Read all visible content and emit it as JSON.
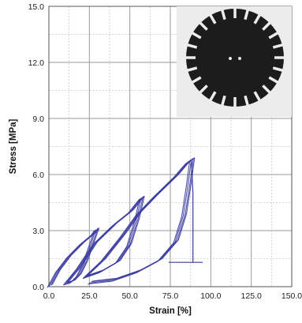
{
  "chart_data": {
    "type": "line",
    "title": "",
    "xlabel": "Strain [%]",
    "ylabel": "Stress [MPa]",
    "xlim": [
      0,
      150
    ],
    "ylim": [
      0,
      15
    ],
    "x_ticks": [
      "0.0",
      "25.0",
      "50.0",
      "75.0",
      "100.0",
      "125.0",
      "150.0"
    ],
    "y_ticks": [
      "0.0",
      "3.0",
      "6.0",
      "9.0",
      "12.0",
      "15.0"
    ],
    "grid": "major solid, minor dashed",
    "line_color": "#3a3aa0",
    "inset": "photo of a black circular disc specimen with radial slots and two center holes, top-right",
    "series": [
      {
        "loops": [
          {
            "loading": [
              [
                0,
                0
              ],
              [
                5,
                0.8
              ],
              [
                12,
                1.6
              ],
              [
                20,
                2.3
              ],
              [
                27,
                2.8
              ],
              [
                29,
                3.05
              ]
            ],
            "unloading": [
              [
                29,
                3.05
              ],
              [
                26,
                2.3
              ],
              [
                22,
                1.3
              ],
              [
                18,
                0.6
              ],
              [
                14,
                0.25
              ],
              [
                10,
                0.15
              ]
            ]
          },
          {
            "loading": [
              [
                10,
                0.15
              ],
              [
                18,
                1.0
              ],
              [
                28,
                2.3
              ],
              [
                40,
                3.3
              ],
              [
                50,
                4.0
              ],
              [
                57,
                4.75
              ]
            ],
            "unloading": [
              [
                57,
                4.75
              ],
              [
                54,
                3.6
              ],
              [
                49,
                2.2
              ],
              [
                42,
                1.3
              ],
              [
                32,
                0.8
              ],
              [
                22,
                0.5
              ]
            ]
          },
          {
            "loading": [
              [
                22,
                0.5
              ],
              [
                33,
                1.4
              ],
              [
                45,
                2.7
              ],
              [
                55,
                3.9
              ],
              [
                65,
                4.8
              ],
              [
                78,
                5.9
              ],
              [
                85,
                6.6
              ],
              [
                88,
                6.8
              ]
            ],
            "unloading": [
              [
                88,
                6.8
              ],
              [
                86,
                5.5
              ],
              [
                83,
                3.8
              ],
              [
                78,
                2.4
              ],
              [
                68,
                1.4
              ],
              [
                55,
                0.8
              ],
              [
                40,
                0.35
              ],
              [
                25,
                0.2
              ]
            ]
          }
        ],
        "relaxation": [
          [
            88,
            6.8
          ],
          [
            89,
            5.0
          ],
          [
            89,
            3.0
          ],
          [
            89,
            1.3
          ]
        ],
        "reference_line": [
          [
            74,
            1.3
          ],
          [
            95,
            1.3
          ]
        ]
      }
    ]
  }
}
